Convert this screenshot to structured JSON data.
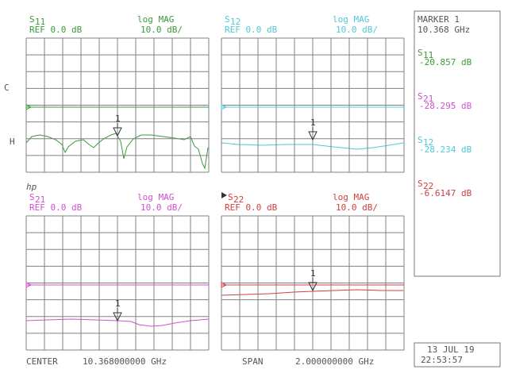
{
  "panels": [
    {
      "param": "S",
      "sub": "11",
      "ref": "REF 0.0 dB",
      "format": "log MAG",
      "scale": "10.0 dB/"
    },
    {
      "param": "S",
      "sub": "12",
      "ref": "REF 0.0 dB",
      "format": "log MAG",
      "scale": "10.0 dB/"
    },
    {
      "param": "S",
      "sub": "21",
      "ref": "REF 0.0 dB",
      "format": "log MAG",
      "scale": "10.0 dB/"
    },
    {
      "param": "S",
      "sub": "22",
      "ref": "REF 0.0 dB",
      "format": "log MAG",
      "scale": "10.0 dB/"
    }
  ],
  "marker_number": "1",
  "side_labels": [
    "C",
    "H",
    "hp"
  ],
  "marker": {
    "title": "MARKER 1",
    "freq": "10.368 GHz",
    "readings": [
      {
        "param": "S",
        "sub": "11",
        "value": "-20.857 dB"
      },
      {
        "param": "S",
        "sub": "21",
        "value": "-28.295 dB"
      },
      {
        "param": "S",
        "sub": "12",
        "value": "-28.234 dB"
      },
      {
        "param": "S",
        "sub": "22",
        "value": "-6.6147 dB"
      }
    ]
  },
  "footer": {
    "center": "CENTER",
    "center_value": "10.368000000 GHz",
    "span": "SPAN",
    "span_value": "2.000000000 GHz"
  },
  "datetime": {
    "date": "13 JUL 19",
    "time": "22:53:57"
  }
}
